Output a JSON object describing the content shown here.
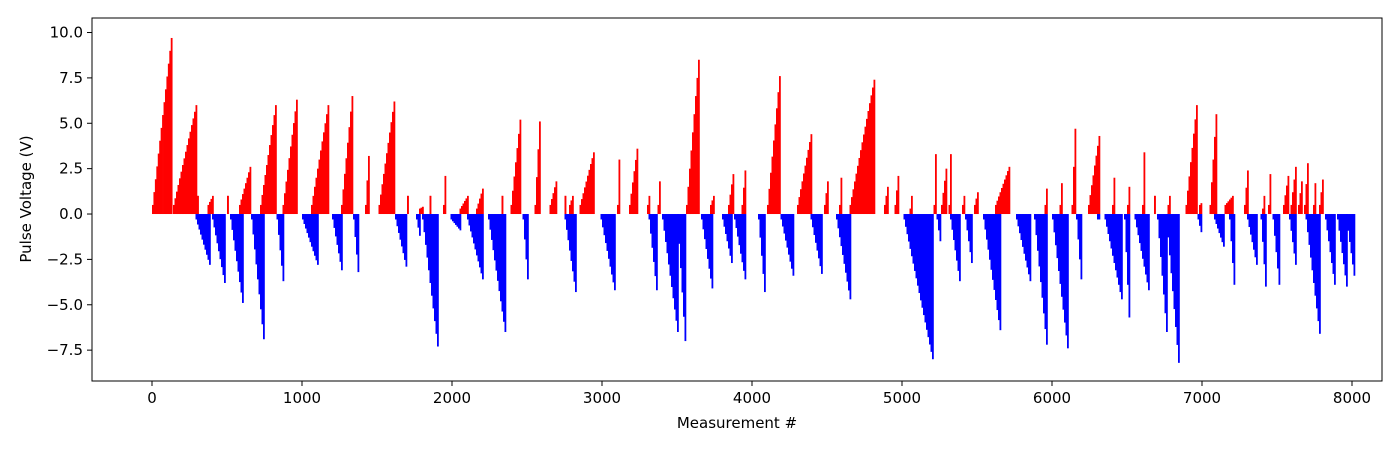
{
  "chart_data": {
    "type": "bar",
    "title": "",
    "xlabel": "Measurement #",
    "ylabel": "Pulse Voltage (V)",
    "xlim": [
      -400,
      8200
    ],
    "ylim": [
      -9.2,
      10.8
    ],
    "x_ticks": [
      0,
      1000,
      2000,
      3000,
      4000,
      5000,
      6000,
      7000,
      8000
    ],
    "x_tick_labels": [
      "0",
      "1000",
      "2000",
      "3000",
      "4000",
      "5000",
      "6000",
      "7000",
      "8000"
    ],
    "y_ticks": [
      10.0,
      7.5,
      5.0,
      2.5,
      0.0,
      -2.5,
      -5.0,
      -7.5
    ],
    "y_tick_labels": [
      "10.0",
      "7.5",
      "5.0",
      "2.5",
      "0.0",
      "−2.5",
      "−5.0",
      "−7.5"
    ],
    "grid": false,
    "colors": {
      "positive": "#ff0000",
      "negative": "#0000ff",
      "axes": "#000000"
    },
    "series": [
      {
        "polarity": "positive",
        "color": "#ff0000",
        "ramps": [
          [
            0,
            125,
            0.5,
            9.7
          ],
          [
            140,
            290,
            0.5,
            6.0
          ],
          [
            300,
            300,
            1.0,
            1.0
          ],
          [
            370,
            400,
            0.5,
            1.0
          ],
          [
            500,
            500,
            1.0,
            1.0
          ],
          [
            580,
            650,
            0.5,
            2.6
          ],
          [
            720,
            820,
            0.5,
            6.0
          ],
          [
            870,
            960,
            0.5,
            6.3
          ],
          [
            1060,
            1170,
            0.5,
            6.0
          ],
          [
            1260,
            1330,
            0.5,
            6.5
          ],
          [
            1420,
            1440,
            0.5,
            3.2
          ],
          [
            1510,
            1610,
            0.5,
            6.2
          ],
          [
            1700,
            1700,
            1.0,
            1.0
          ],
          [
            1780,
            1800,
            0.3,
            0.4
          ],
          [
            1850,
            1850,
            1.0,
            1.0
          ],
          [
            1940,
            1950,
            0.5,
            2.1
          ],
          [
            2050,
            2100,
            0.3,
            1.0
          ],
          [
            2160,
            2200,
            0.3,
            1.4
          ],
          [
            2330,
            2330,
            1.0,
            1.0
          ],
          [
            2390,
            2450,
            0.5,
            5.2
          ],
          [
            2550,
            2580,
            0.5,
            5.1
          ],
          [
            2650,
            2690,
            0.5,
            1.8
          ],
          [
            2750,
            2750,
            1.0,
            1.0
          ],
          [
            2780,
            2800,
            0.5,
            1.0
          ],
          [
            2850,
            2940,
            0.5,
            3.4
          ],
          [
            3100,
            3110,
            0.5,
            3.0
          ],
          [
            3180,
            3230,
            0.5,
            3.6
          ],
          [
            3300,
            3310,
            0.5,
            1.0
          ],
          [
            3370,
            3380,
            0.5,
            1.8
          ],
          [
            3560,
            3640,
            0.5,
            8.5
          ],
          [
            3720,
            3740,
            0.5,
            1.0
          ],
          [
            3840,
            3870,
            0.5,
            2.2
          ],
          [
            3930,
            3950,
            0.5,
            2.4
          ],
          [
            4100,
            4180,
            0.5,
            7.6
          ],
          [
            4300,
            4390,
            0.5,
            4.4
          ],
          [
            4480,
            4500,
            0.5,
            1.8
          ],
          [
            4580,
            4590,
            0.5,
            2.0
          ],
          [
            4650,
            4810,
            0.5,
            7.4
          ],
          [
            4880,
            4900,
            0.5,
            1.5
          ],
          [
            4950,
            4970,
            0.5,
            2.1
          ],
          [
            5050,
            5060,
            0.3,
            1.0
          ],
          [
            5210,
            5220,
            0.5,
            3.3
          ],
          [
            5260,
            5290,
            0.5,
            2.5
          ],
          [
            5310,
            5320,
            0.5,
            3.3
          ],
          [
            5400,
            5410,
            0.5,
            1.0
          ],
          [
            5480,
            5500,
            0.5,
            1.2
          ],
          [
            5620,
            5710,
            0.5,
            2.6
          ],
          [
            5950,
            5960,
            0.5,
            1.4
          ],
          [
            6050,
            6060,
            0.5,
            1.7
          ],
          [
            6130,
            6150,
            0.5,
            4.7
          ],
          [
            6240,
            6310,
            0.5,
            4.3
          ],
          [
            6400,
            6410,
            0.5,
            2.0
          ],
          [
            6500,
            6510,
            0.5,
            1.5
          ],
          [
            6600,
            6610,
            0.5,
            3.4
          ],
          [
            6680,
            6680,
            1.0,
            1.0
          ],
          [
            6770,
            6780,
            0.5,
            1.0
          ],
          [
            6890,
            6960,
            0.5,
            6.0
          ],
          [
            6980,
            6990,
            0.5,
            0.6
          ],
          [
            7050,
            7090,
            0.5,
            5.5
          ],
          [
            7150,
            7200,
            0.5,
            1.0
          ],
          [
            7280,
            7300,
            0.5,
            2.4
          ],
          [
            7400,
            7410,
            0.3,
            1.0
          ],
          [
            7440,
            7450,
            0.5,
            2.2
          ],
          [
            7540,
            7570,
            0.5,
            2.1
          ],
          [
            7590,
            7620,
            0.5,
            2.6
          ],
          [
            7640,
            7660,
            0.5,
            1.8
          ],
          [
            7680,
            7700,
            0.5,
            2.8
          ],
          [
            7740,
            7750,
            0.5,
            1.7
          ],
          [
            7780,
            7800,
            0.5,
            1.9
          ]
        ]
      },
      {
        "polarity": "negative",
        "color": "#0000ff",
        "ramps": [
          [
            290,
            380,
            0.3,
            2.8
          ],
          [
            400,
            480,
            0.3,
            3.8
          ],
          [
            520,
            600,
            0.3,
            4.9
          ],
          [
            660,
            740,
            0.3,
            6.9
          ],
          [
            830,
            870,
            0.3,
            3.7
          ],
          [
            1000,
            1100,
            0.3,
            2.8
          ],
          [
            1200,
            1260,
            0.3,
            3.1
          ],
          [
            1340,
            1370,
            0.3,
            3.2
          ],
          [
            1620,
            1690,
            0.3,
            2.9
          ],
          [
            1760,
            1780,
            0.3,
            1.2
          ],
          [
            1800,
            1900,
            0.3,
            7.3
          ],
          [
            1990,
            2050,
            0.3,
            0.9
          ],
          [
            2100,
            2200,
            0.3,
            3.6
          ],
          [
            2240,
            2350,
            0.3,
            6.5
          ],
          [
            2470,
            2500,
            0.3,
            3.6
          ],
          [
            2750,
            2820,
            0.3,
            4.3
          ],
          [
            2990,
            3080,
            0.3,
            4.2
          ],
          [
            3310,
            3360,
            0.3,
            4.2
          ],
          [
            3400,
            3500,
            0.3,
            6.5
          ],
          [
            3500,
            3550,
            0.3,
            7.0
          ],
          [
            3660,
            3730,
            0.3,
            4.1
          ],
          [
            3800,
            3860,
            0.3,
            2.7
          ],
          [
            3880,
            3950,
            0.3,
            3.6
          ],
          [
            4040,
            4080,
            0.3,
            4.3
          ],
          [
            4190,
            4270,
            0.3,
            3.4
          ],
          [
            4390,
            4460,
            0.3,
            3.3
          ],
          [
            4560,
            4650,
            0.3,
            4.7
          ],
          [
            5010,
            5200,
            0.3,
            8.0
          ],
          [
            5230,
            5250,
            0.3,
            1.5
          ],
          [
            5320,
            5380,
            0.3,
            3.7
          ],
          [
            5420,
            5460,
            0.3,
            2.7
          ],
          [
            5540,
            5650,
            0.3,
            6.4
          ],
          [
            5760,
            5850,
            0.3,
            3.7
          ],
          [
            5880,
            5960,
            0.3,
            7.2
          ],
          [
            6000,
            6100,
            0.3,
            7.4
          ],
          [
            6160,
            6190,
            0.3,
            3.6
          ],
          [
            6300,
            6310,
            0.3,
            0.3
          ],
          [
            6350,
            6460,
            0.3,
            4.7
          ],
          [
            6480,
            6510,
            0.3,
            5.7
          ],
          [
            6550,
            6640,
            0.3,
            4.2
          ],
          [
            6700,
            6760,
            0.3,
            6.5
          ],
          [
            6760,
            6840,
            0.3,
            8.2
          ],
          [
            6970,
            6990,
            0.3,
            1.0
          ],
          [
            7080,
            7140,
            0.3,
            1.8
          ],
          [
            7180,
            7210,
            0.3,
            3.9
          ],
          [
            7300,
            7360,
            0.3,
            2.8
          ],
          [
            7390,
            7420,
            0.3,
            4.0
          ],
          [
            7470,
            7510,
            0.3,
            3.9
          ],
          [
            7580,
            7620,
            0.3,
            2.8
          ],
          [
            7690,
            7780,
            0.3,
            6.6
          ],
          [
            7820,
            7880,
            0.3,
            3.9
          ],
          [
            7900,
            7960,
            0.3,
            4.0
          ],
          [
            7960,
            8010,
            0.3,
            3.4
          ]
        ]
      }
    ]
  }
}
